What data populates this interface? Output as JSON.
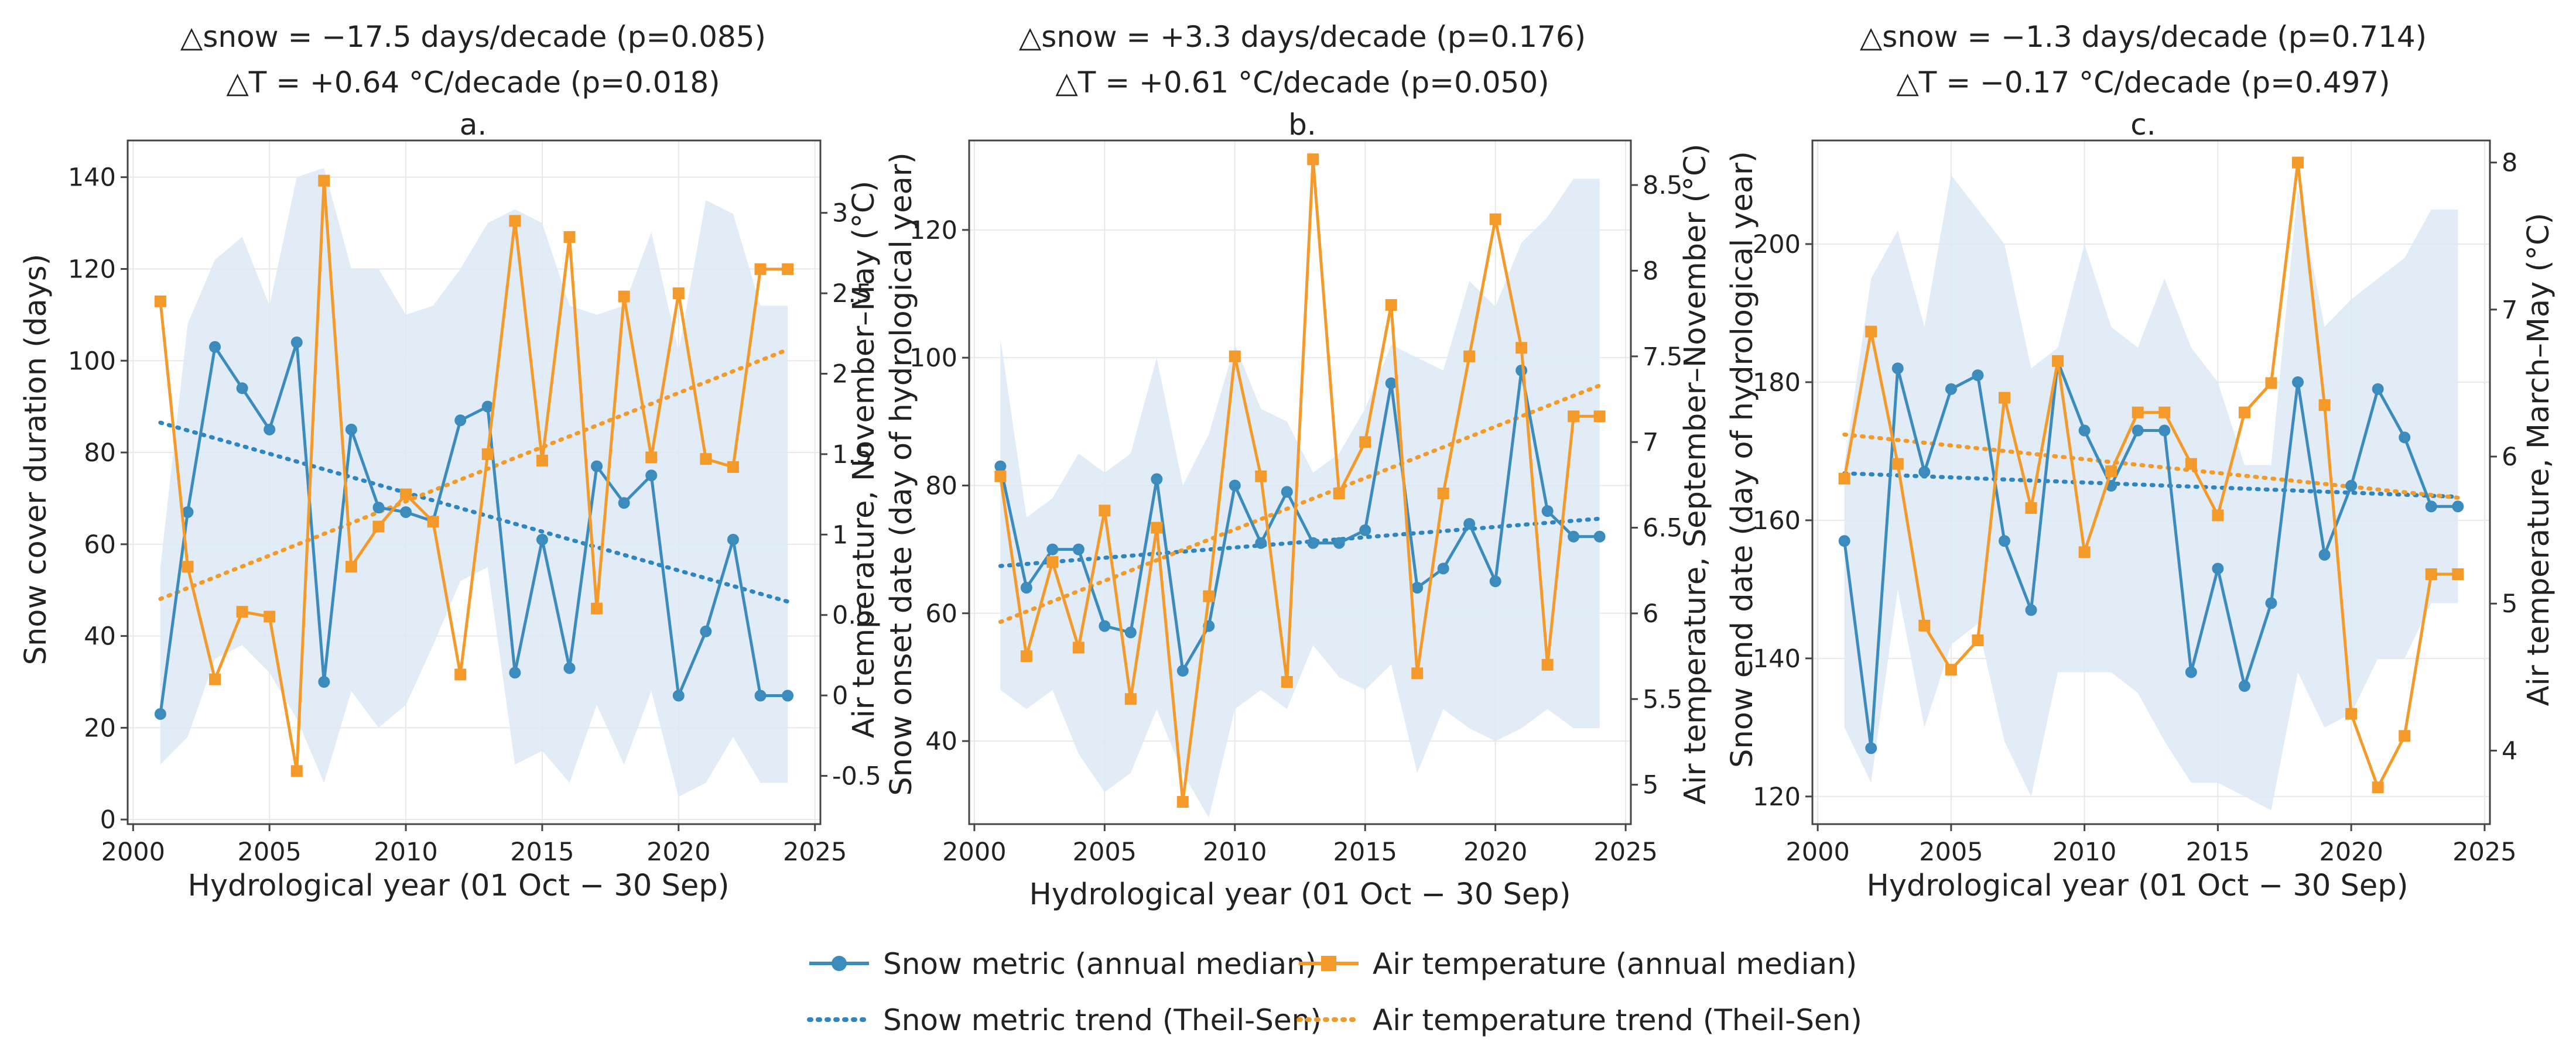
{
  "colors": {
    "snow": "#3b8bbd",
    "temp": "#f39a2b",
    "band": "#dce9f6",
    "snow_trend": "#2f86bf",
    "temp_trend": "#f29b2a",
    "grid": "#e8e8e8",
    "frame": "#444444"
  },
  "legend": {
    "snow_metric": "Snow metric (annual median)",
    "air_temperature": "Air temperature (annual median)",
    "snow_trend": "Snow metric trend (Theil-Sen)",
    "temp_trend": "Air temperature trend (Theil-Sen)"
  },
  "chart_data": [
    {
      "type": "line",
      "panel": "a.",
      "title_line1": "△snow = −17.5 days/decade (p=0.085)",
      "title_line2": "△T = +0.64 °C/decade (p=0.018)",
      "xlabel": "Hydrological year (01 Oct − 30 Sep)",
      "ylabel": "Snow cover duration (days)",
      "ylabel_right": "Air temperature, November–May (°C)",
      "xlim": [
        1999.8,
        2025.2
      ],
      "xticks": [
        2000,
        2005,
        2010,
        2015,
        2020,
        2025
      ],
      "ylim": [
        -1,
        148
      ],
      "yticks": [
        0,
        20,
        40,
        60,
        80,
        100,
        120,
        140
      ],
      "ylim_right": [
        -0.8,
        3.45
      ],
      "yticks_right": [
        -0.5,
        0.0,
        0.5,
        1.0,
        1.5,
        2.0,
        2.5,
        3.0
      ],
      "x": [
        2001,
        2002,
        2003,
        2004,
        2005,
        2006,
        2007,
        2008,
        2009,
        2010,
        2011,
        2012,
        2013,
        2014,
        2015,
        2016,
        2017,
        2018,
        2019,
        2020,
        2021,
        2022,
        2023,
        2024
      ],
      "snow": [
        23,
        67,
        103,
        94,
        85,
        104,
        30,
        85,
        68,
        67,
        65,
        87,
        90,
        32,
        61,
        33,
        77,
        69,
        75,
        27,
        41,
        61,
        27,
        27
      ],
      "temp": [
        2.45,
        0.8,
        0.1,
        0.52,
        0.49,
        -0.47,
        3.2,
        0.8,
        1.05,
        1.25,
        1.08,
        0.13,
        1.5,
        2.95,
        1.46,
        2.85,
        0.54,
        2.48,
        1.48,
        2.5,
        1.47,
        1.42,
        2.65,
        2.65
      ],
      "band_upper": [
        55,
        108,
        122,
        127,
        112,
        140,
        142,
        120,
        120,
        110,
        112,
        120,
        130,
        133,
        130,
        112,
        110,
        112,
        128,
        102,
        135,
        132,
        112,
        112
      ],
      "band_lower": [
        12,
        18,
        35,
        38,
        32,
        22,
        8,
        28,
        20,
        25,
        38,
        52,
        55,
        12,
        15,
        8,
        25,
        12,
        28,
        5,
        8,
        18,
        8,
        8
      ],
      "snow_trend": [
        86.5,
        47.5
      ],
      "temp_trend": [
        0.6,
        2.15
      ]
    },
    {
      "type": "line",
      "panel": "b.",
      "title_line1": "△snow = +3.3 days/decade (p=0.176)",
      "title_line2": "△T = +0.61 °C/decade (p=0.050)",
      "xlabel": "Hydrological year (01 Oct − 30 Sep)",
      "ylabel": "Snow onset date (day of hydrological year)",
      "ylabel_right": "Air temperature, September–November (°C)",
      "xlim": [
        1999.8,
        2025.2
      ],
      "xticks": [
        2000,
        2005,
        2010,
        2015,
        2020,
        2025
      ],
      "ylim": [
        27,
        134
      ],
      "yticks": [
        40,
        60,
        80,
        100,
        120
      ],
      "ylim_right": [
        4.77,
        8.76
      ],
      "yticks_right": [
        5.0,
        5.5,
        6.0,
        6.5,
        7.0,
        7.5,
        8.0,
        8.5
      ],
      "x": [
        2001,
        2002,
        2003,
        2004,
        2005,
        2006,
        2007,
        2008,
        2009,
        2010,
        2011,
        2012,
        2013,
        2014,
        2015,
        2016,
        2017,
        2018,
        2019,
        2020,
        2021,
        2022,
        2023,
        2024
      ],
      "snow": [
        83,
        64,
        70,
        70,
        58,
        57,
        81,
        51,
        58,
        80,
        71,
        79,
        71,
        71,
        73,
        96,
        64,
        67,
        74,
        65,
        98,
        76,
        72,
        72
      ],
      "temp": [
        6.8,
        5.75,
        6.3,
        5.8,
        6.6,
        5.5,
        6.5,
        4.9,
        6.1,
        7.5,
        6.8,
        5.6,
        8.65,
        6.7,
        7.0,
        7.8,
        5.65,
        6.7,
        7.5,
        8.3,
        7.55,
        5.7,
        7.15,
        7.15
      ],
      "band_upper": [
        103,
        75,
        78,
        85,
        82,
        85,
        100,
        80,
        88,
        102,
        92,
        90,
        82,
        85,
        92,
        102,
        100,
        98,
        112,
        108,
        118,
        122,
        128,
        128
      ],
      "band_lower": [
        48,
        45,
        48,
        38,
        32,
        35,
        45,
        35,
        28,
        45,
        48,
        45,
        55,
        50,
        48,
        52,
        35,
        45,
        42,
        40,
        42,
        45,
        42,
        42
      ],
      "snow_trend": [
        67.4,
        74.8
      ],
      "temp_trend": [
        5.95,
        7.33
      ]
    },
    {
      "type": "line",
      "panel": "c.",
      "title_line1": "△snow = −1.3 days/decade (p=0.714)",
      "title_line2": "△T = −0.17 °C/decade (p=0.497)",
      "xlabel": "Hydrological year (01 Oct − 30 Sep)",
      "ylabel": "Snow end date (day of hydrological year)",
      "ylabel_right": "Air temperature, March–May (°C)",
      "xlim": [
        1999.8,
        2025.2
      ],
      "xticks": [
        2000,
        2005,
        2010,
        2015,
        2020,
        2025
      ],
      "ylim": [
        116,
        215
      ],
      "yticks": [
        120,
        140,
        160,
        180,
        200
      ],
      "ylim_right": [
        3.5,
        8.15
      ],
      "yticks_right": [
        4,
        5,
        6,
        7,
        8
      ],
      "x": [
        2001,
        2002,
        2003,
        2004,
        2005,
        2006,
        2007,
        2008,
        2009,
        2010,
        2011,
        2012,
        2013,
        2014,
        2015,
        2016,
        2017,
        2018,
        2019,
        2020,
        2021,
        2022,
        2023,
        2024
      ],
      "snow": [
        157,
        127,
        182,
        167,
        179,
        181,
        157,
        147,
        183,
        173,
        165,
        173,
        173,
        138,
        153,
        136,
        148,
        180,
        155,
        165,
        179,
        172,
        162,
        162
      ],
      "temp": [
        5.85,
        6.85,
        5.95,
        4.85,
        4.55,
        4.75,
        6.4,
        5.65,
        6.65,
        5.35,
        5.9,
        6.3,
        6.3,
        5.95,
        5.6,
        6.3,
        6.5,
        8.0,
        6.35,
        4.25,
        3.75,
        4.1,
        5.2,
        5.2
      ],
      "band_upper": [
        168,
        195,
        202,
        188,
        210,
        205,
        200,
        182,
        185,
        200,
        188,
        185,
        195,
        185,
        180,
        168,
        168,
        208,
        188,
        192,
        195,
        198,
        205,
        205
      ],
      "band_lower": [
        130,
        122,
        150,
        130,
        142,
        145,
        128,
        120,
        138,
        138,
        138,
        135,
        128,
        122,
        122,
        120,
        118,
        138,
        130,
        132,
        140,
        140,
        148,
        148
      ],
      "snow_trend": [
        166.8,
        163.4
      ],
      "temp_trend": [
        6.15,
        5.72
      ]
    }
  ]
}
